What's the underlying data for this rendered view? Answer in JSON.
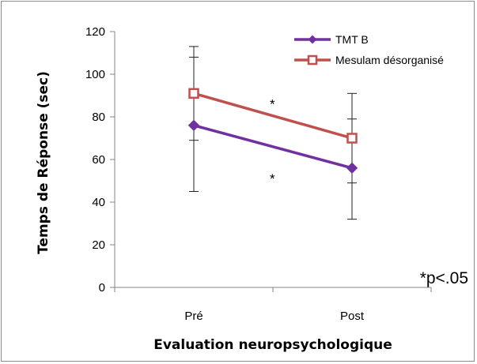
{
  "chart_data": {
    "type": "line",
    "categories": [
      "Pré",
      "Post"
    ],
    "series": [
      {
        "name": "TMT B",
        "values": [
          76,
          56
        ],
        "error_low": [
          45,
          32
        ],
        "error_high": [
          108,
          79
        ],
        "color": "#7030a0",
        "marker": "diamond"
      },
      {
        "name": "Mesulam désorganisé",
        "values": [
          91,
          70
        ],
        "error_low": [
          69,
          49
        ],
        "error_high": [
          113,
          91
        ],
        "color": "#c0504d",
        "marker": "square"
      }
    ],
    "xlabel": "Evaluation neuropsychologique",
    "ylabel": "Temps de Réponse (sec)",
    "ylim": [
      0,
      120
    ],
    "yticks": [
      "0",
      "20",
      "40",
      "60",
      "80",
      "100",
      "120"
    ],
    "grid": false,
    "legend_position": "top-right",
    "annotations": [
      {
        "text": "*",
        "between": "Mesulam désorganisé"
      },
      {
        "text": "*",
        "between": "TMT B"
      }
    ],
    "footnote": "*p<.05"
  }
}
